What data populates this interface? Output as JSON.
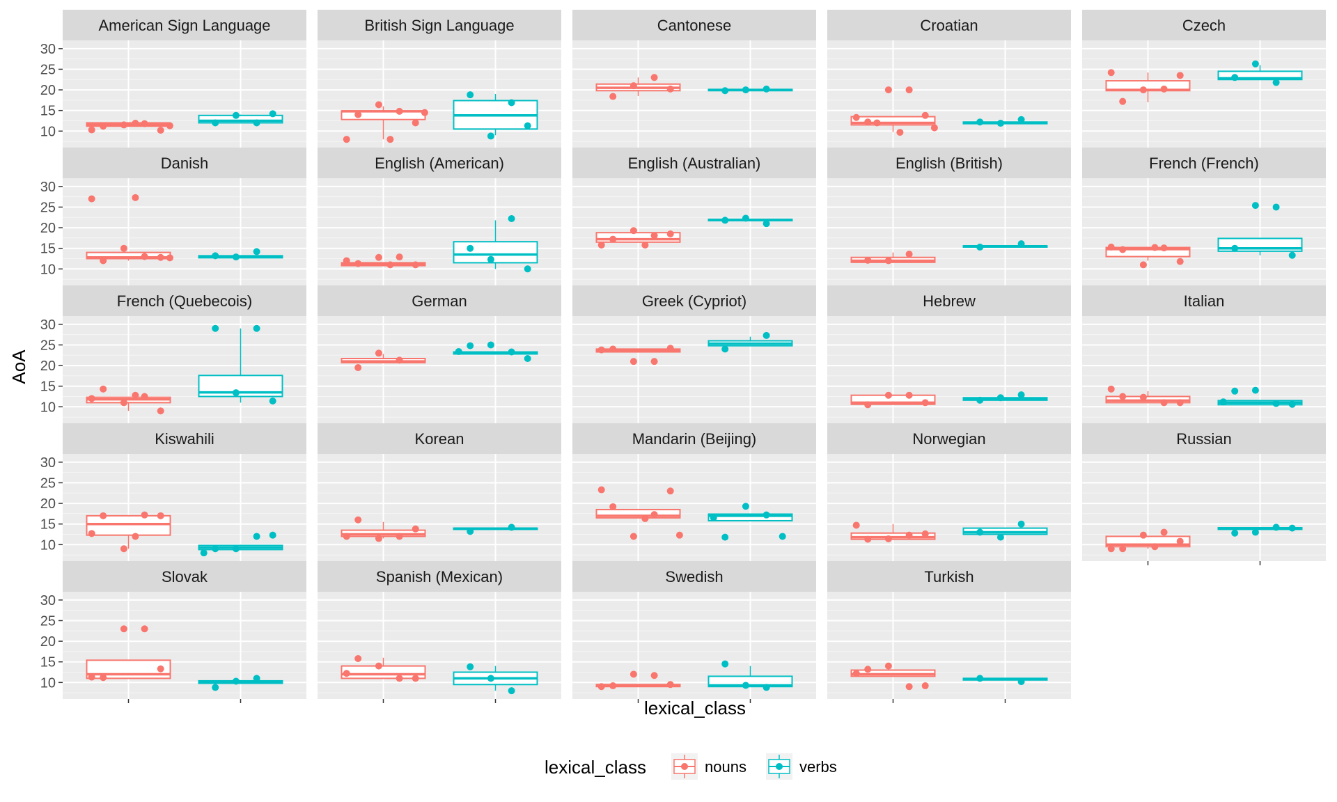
{
  "chart_data": {
    "type": "boxplot",
    "xlabel": "lexical_class",
    "ylabel": "AoA",
    "ylim": [
      6,
      32
    ],
    "yticks": [
      10,
      15,
      20,
      25,
      30
    ],
    "facet_columns": 5,
    "grid": true,
    "categories": [
      "nouns",
      "verbs"
    ],
    "colors": {
      "nouns": "#F8766D",
      "verbs": "#00BFC4"
    },
    "legend": {
      "title": "lexical_class",
      "position": "bottom",
      "items": [
        "nouns",
        "verbs"
      ]
    },
    "facets": [
      {
        "name": "American Sign Language",
        "nouns": {
          "q1": 11.2,
          "median": 11.6,
          "q3": 12.0,
          "lo": 11.2,
          "hi": 12.0,
          "points": [
            11.2,
            11.8,
            11.5,
            10.2,
            10.3,
            11.9,
            11.3
          ]
        },
        "verbs": {
          "q1": 12.0,
          "median": 12.5,
          "q3": 13.8,
          "lo": 12.0,
          "hi": 14.0,
          "points": [
            12.0,
            12.0,
            13.8,
            14.2
          ]
        }
      },
      {
        "name": "British Sign Language",
        "nouns": {
          "q1": 12.8,
          "median": 14.8,
          "q3": 14.9,
          "lo": 8.0,
          "hi": 16.0,
          "points": [
            14.0,
            14.8,
            16.4,
            12.0,
            8.0,
            8.0,
            14.5
          ]
        },
        "verbs": {
          "q1": 10.5,
          "median": 13.8,
          "q3": 17.4,
          "lo": 9.0,
          "hi": 19.0,
          "points": [
            18.8,
            16.9,
            8.8,
            11.3
          ]
        }
      },
      {
        "name": "Cantonese",
        "nouns": {
          "q1": 19.8,
          "median": 20.5,
          "q3": 21.4,
          "lo": 18.5,
          "hi": 23.0,
          "points": [
            18.4,
            23.0,
            21.0,
            20.2
          ]
        },
        "verbs": {
          "q1": 19.8,
          "median": 20.0,
          "q3": 20.1,
          "lo": 19.8,
          "hi": 20.1,
          "points": [
            19.8,
            20.2,
            20.0
          ]
        }
      },
      {
        "name": "Croatian",
        "nouns": {
          "q1": 11.5,
          "median": 12.0,
          "q3": 13.5,
          "lo": 9.8,
          "hi": 13.5,
          "points": [
            12.2,
            20.0,
            20.0,
            13.8,
            13.3,
            9.7,
            10.8,
            12.0
          ]
        },
        "verbs": {
          "q1": 11.8,
          "median": 12.0,
          "q3": 12.2,
          "lo": 11.8,
          "hi": 12.2,
          "points": [
            12.2,
            12.8,
            11.9
          ]
        }
      },
      {
        "name": "Czech",
        "nouns": {
          "q1": 19.8,
          "median": 20.0,
          "q3": 22.2,
          "lo": 17.0,
          "hi": 24.2,
          "points": [
            17.2,
            20.2,
            20.0,
            23.5,
            24.2
          ]
        },
        "verbs": {
          "q1": 22.5,
          "median": 22.8,
          "q3": 24.5,
          "lo": 22.5,
          "hi": 26.0,
          "points": [
            23.0,
            21.8,
            26.3
          ]
        }
      },
      {
        "name": "Danish",
        "nouns": {
          "q1": 12.5,
          "median": 12.8,
          "q3": 14.0,
          "lo": 12.0,
          "hi": 14.0,
          "points": [
            12.0,
            13.0,
            15.0,
            12.8,
            27.0,
            27.3,
            12.7
          ]
        },
        "verbs": {
          "q1": 12.7,
          "median": 13.0,
          "q3": 13.2,
          "lo": 12.7,
          "hi": 13.2,
          "points": [
            13.2,
            14.2,
            12.9
          ]
        }
      },
      {
        "name": "English (American)",
        "nouns": {
          "q1": 10.8,
          "median": 11.2,
          "q3": 11.5,
          "lo": 10.8,
          "hi": 11.5,
          "points": [
            11.3,
            12.9,
            12.8,
            11.0,
            12.0,
            11.0
          ]
        },
        "verbs": {
          "q1": 11.5,
          "median": 13.5,
          "q3": 16.6,
          "lo": 10.0,
          "hi": 21.8,
          "points": [
            15.0,
            22.2,
            12.3,
            10.0
          ]
        }
      },
      {
        "name": "English (Australian)",
        "nouns": {
          "q1": 16.5,
          "median": 17.2,
          "q3": 18.8,
          "lo": 16.5,
          "hi": 18.8,
          "points": [
            17.2,
            18.1,
            19.3,
            18.5,
            15.8,
            15.8
          ]
        },
        "verbs": {
          "q1": 21.7,
          "median": 21.9,
          "q3": 22.0,
          "lo": 21.7,
          "hi": 22.0,
          "points": [
            21.8,
            21.0,
            22.3
          ]
        }
      },
      {
        "name": "English (British)",
        "nouns": {
          "q1": 11.6,
          "median": 12.0,
          "q3": 12.8,
          "lo": 11.6,
          "hi": 14.0,
          "points": [
            12.1,
            13.6,
            12.0
          ]
        },
        "verbs": {
          "q1": 15.3,
          "median": 15.5,
          "q3": 15.6,
          "lo": 15.3,
          "hi": 15.6,
          "points": [
            15.3,
            16.1
          ]
        }
      },
      {
        "name": "French (French)",
        "nouns": {
          "q1": 13.0,
          "median": 14.8,
          "q3": 15.2,
          "lo": 12.0,
          "hi": 15.2,
          "points": [
            14.7,
            15.1,
            11.0,
            11.8,
            15.3,
            15.2
          ]
        },
        "verbs": {
          "q1": 14.3,
          "median": 15.0,
          "q3": 17.4,
          "lo": 13.3,
          "hi": 17.4,
          "points": [
            15.0,
            25.0,
            25.4,
            13.3
          ]
        }
      },
      {
        "name": "French (Quebecois)",
        "nouns": {
          "q1": 11.0,
          "median": 11.8,
          "q3": 12.3,
          "lo": 9.0,
          "hi": 12.3,
          "points": [
            14.3,
            12.5,
            11.0,
            9.0,
            12.0,
            12.8
          ]
        },
        "verbs": {
          "q1": 12.5,
          "median": 13.5,
          "q3": 17.6,
          "lo": 11.0,
          "hi": 29.0,
          "points": [
            29.0,
            29.0,
            13.4,
            11.4
          ]
        }
      },
      {
        "name": "German",
        "nouns": {
          "q1": 20.7,
          "median": 21.0,
          "q3": 21.7,
          "lo": 20.7,
          "hi": 22.8,
          "points": [
            19.5,
            21.3,
            23.0
          ]
        },
        "verbs": {
          "q1": 22.8,
          "median": 23.0,
          "q3": 23.3,
          "lo": 22.8,
          "hi": 23.3,
          "points": [
            24.8,
            23.3,
            25.0,
            21.7,
            23.4
          ]
        }
      },
      {
        "name": "Greek (Cypriot)",
        "nouns": {
          "q1": 23.3,
          "median": 23.7,
          "q3": 24.0,
          "lo": 23.3,
          "hi": 24.0,
          "points": [
            24.0,
            21.0,
            21.0,
            24.2,
            23.8
          ]
        },
        "verbs": {
          "q1": 24.8,
          "median": 25.3,
          "q3": 26.0,
          "lo": 24.8,
          "hi": 27.0,
          "points": [
            24.0,
            27.3
          ]
        }
      },
      {
        "name": "Hebrew",
        "nouns": {
          "q1": 10.6,
          "median": 11.0,
          "q3": 12.8,
          "lo": 10.6,
          "hi": 12.8,
          "points": [
            10.5,
            12.8,
            12.8,
            11.0
          ]
        },
        "verbs": {
          "q1": 11.6,
          "median": 11.9,
          "q3": 12.2,
          "lo": 11.6,
          "hi": 12.2,
          "points": [
            11.6,
            12.9,
            12.2
          ]
        }
      },
      {
        "name": "Italian",
        "nouns": {
          "q1": 11.0,
          "median": 11.5,
          "q3": 12.5,
          "lo": 11.0,
          "hi": 13.8,
          "points": [
            12.5,
            11.0,
            12.3,
            11.0,
            14.3
          ]
        },
        "verbs": {
          "q1": 10.5,
          "median": 11.0,
          "q3": 11.5,
          "lo": 10.5,
          "hi": 11.5,
          "points": [
            13.8,
            10.8,
            14.0,
            10.6,
            11.2
          ]
        }
      },
      {
        "name": "Kiswahili",
        "nouns": {
          "q1": 12.3,
          "median": 15.0,
          "q3": 17.0,
          "lo": 9.0,
          "hi": 17.0,
          "points": [
            17.0,
            17.2,
            9.0,
            17.0,
            12.7,
            12.0
          ]
        },
        "verbs": {
          "q1": 8.8,
          "median": 9.3,
          "q3": 9.8,
          "lo": 8.8,
          "hi": 9.8,
          "points": [
            9.0,
            12.0,
            9.0,
            12.3,
            8.0
          ]
        }
      },
      {
        "name": "Korean",
        "nouns": {
          "q1": 12.0,
          "median": 12.5,
          "q3": 13.5,
          "lo": 11.5,
          "hi": 15.5,
          "points": [
            16.0,
            12.0,
            11.5,
            13.8,
            12.0
          ]
        },
        "verbs": {
          "q1": 13.7,
          "median": 13.9,
          "q3": 14.0,
          "lo": 13.7,
          "hi": 14.0,
          "points": [
            13.2,
            14.2
          ]
        }
      },
      {
        "name": "Mandarin (Beijing)",
        "nouns": {
          "q1": 16.5,
          "median": 17.0,
          "q3": 18.5,
          "lo": 16.5,
          "hi": 18.5,
          "points": [
            19.2,
            17.3,
            12.0,
            23.0,
            23.3,
            16.3,
            12.3
          ]
        },
        "verbs": {
          "q1": 15.8,
          "median": 17.0,
          "q3": 17.4,
          "lo": 15.8,
          "hi": 17.4,
          "points": [
            11.8,
            17.2,
            19.3,
            12.0,
            16.5
          ]
        }
      },
      {
        "name": "Norwegian",
        "nouns": {
          "q1": 11.3,
          "median": 11.8,
          "q3": 12.8,
          "lo": 11.3,
          "hi": 15.0,
          "points": [
            11.3,
            12.3,
            11.4,
            12.6,
            14.7
          ]
        },
        "verbs": {
          "q1": 12.5,
          "median": 13.0,
          "q3": 14.0,
          "lo": 12.5,
          "hi": 14.0,
          "points": [
            13.0,
            15.0,
            11.8
          ]
        }
      },
      {
        "name": "Russian",
        "nouns": {
          "q1": 9.5,
          "median": 10.0,
          "q3": 12.0,
          "lo": 9.0,
          "hi": 12.0,
          "points": [
            9.0,
            13.0,
            12.3,
            10.8,
            9.0,
            9.5
          ]
        },
        "verbs": {
          "q1": 13.7,
          "median": 13.9,
          "q3": 14.1,
          "lo": 13.7,
          "hi": 14.1,
          "points": [
            12.8,
            14.2,
            13.0,
            14.0
          ]
        }
      },
      {
        "name": "Slovak",
        "nouns": {
          "q1": 11.0,
          "median": 12.0,
          "q3": 15.4,
          "lo": 11.0,
          "hi": 15.4,
          "points": [
            11.2,
            23.0,
            23.0,
            13.3,
            11.3
          ]
        },
        "verbs": {
          "q1": 9.8,
          "median": 10.0,
          "q3": 10.4,
          "lo": 9.8,
          "hi": 10.4,
          "points": [
            8.8,
            11.0,
            10.3
          ]
        }
      },
      {
        "name": "Spanish (Mexican)",
        "nouns": {
          "q1": 11.0,
          "median": 12.0,
          "q3": 14.0,
          "lo": 11.0,
          "hi": 16.0,
          "points": [
            15.8,
            11.0,
            14.0,
            11.0,
            12.2
          ]
        },
        "verbs": {
          "q1": 9.5,
          "median": 11.0,
          "q3": 12.5,
          "lo": 8.0,
          "hi": 14.0,
          "points": [
            13.8,
            8.0,
            11.0
          ]
        }
      },
      {
        "name": "Swedish",
        "nouns": {
          "q1": 9.0,
          "median": 9.2,
          "q3": 9.5,
          "lo": 9.0,
          "hi": 9.5,
          "points": [
            9.2,
            11.7,
            12.0,
            9.5,
            9.0
          ]
        },
        "verbs": {
          "q1": 9.0,
          "median": 9.3,
          "q3": 11.5,
          "lo": 9.0,
          "hi": 14.0,
          "points": [
            14.5,
            8.8,
            9.3
          ]
        }
      },
      {
        "name": "Turkish",
        "nouns": {
          "q1": 11.5,
          "median": 12.0,
          "q3": 13.0,
          "lo": 11.5,
          "hi": 13.0,
          "points": [
            13.2,
            9.0,
            14.0,
            9.2,
            12.2
          ]
        },
        "verbs": {
          "q1": 10.6,
          "median": 10.8,
          "q3": 11.0,
          "lo": 10.6,
          "hi": 11.0,
          "points": [
            11.0,
            10.2
          ]
        }
      }
    ]
  }
}
